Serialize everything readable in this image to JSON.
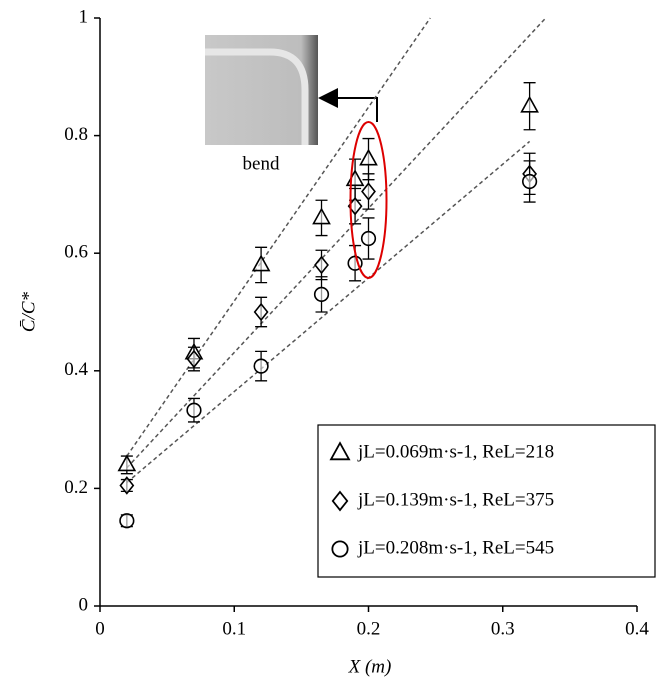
{
  "chart_data": {
    "type": "scatter",
    "x_label": "X (m)",
    "y_label": "C̄/C*",
    "x": [
      0.02,
      0.07,
      0.12,
      0.165,
      0.19,
      0.2,
      0.32
    ],
    "series": [
      {
        "name": "jL=0.069m·s-1, ReL=218",
        "marker": "triangle",
        "color": "#000000",
        "values": [
          0.24,
          0.43,
          0.58,
          0.66,
          0.725,
          0.76,
          0.85
        ],
        "errors": [
          0.015,
          0.025,
          0.03,
          0.03,
          0.035,
          0.035,
          0.04
        ]
      },
      {
        "name": "jL=0.139m·s-1, ReL=375",
        "marker": "diamond",
        "color": "#000000",
        "values": [
          0.205,
          0.42,
          0.5,
          0.58,
          0.68,
          0.705,
          0.735
        ],
        "errors": [
          0.01,
          0.02,
          0.025,
          0.025,
          0.03,
          0.03,
          0.035
        ]
      },
      {
        "name": "jL=0.208m·s-1, ReL=545",
        "marker": "circle",
        "color": "#000000",
        "values": [
          0.145,
          0.333,
          0.408,
          0.53,
          0.583,
          0.625,
          0.722
        ],
        "errors": [
          0.01,
          0.02,
          0.025,
          0.03,
          0.03,
          0.035,
          0.035
        ]
      }
    ],
    "trend_lines": [
      {
        "x": [
          0.02,
          0.246
        ],
        "y": [
          0.255,
          1.0
        ]
      },
      {
        "x": [
          0.02,
          0.332
        ],
        "y": [
          0.235,
          1.0
        ]
      },
      {
        "x": [
          0.02,
          0.32
        ],
        "y": [
          0.21,
          0.79
        ]
      }
    ],
    "annotation": "bend",
    "xlim": [
      0,
      0.4
    ],
    "xticks": [
      0,
      0.1,
      0.2,
      0.3,
      0.4
    ],
    "ylim": [
      0,
      1
    ],
    "yticks": [
      0,
      0.2,
      0.4,
      0.6,
      0.8,
      1
    ],
    "legend_position": "lower right"
  }
}
